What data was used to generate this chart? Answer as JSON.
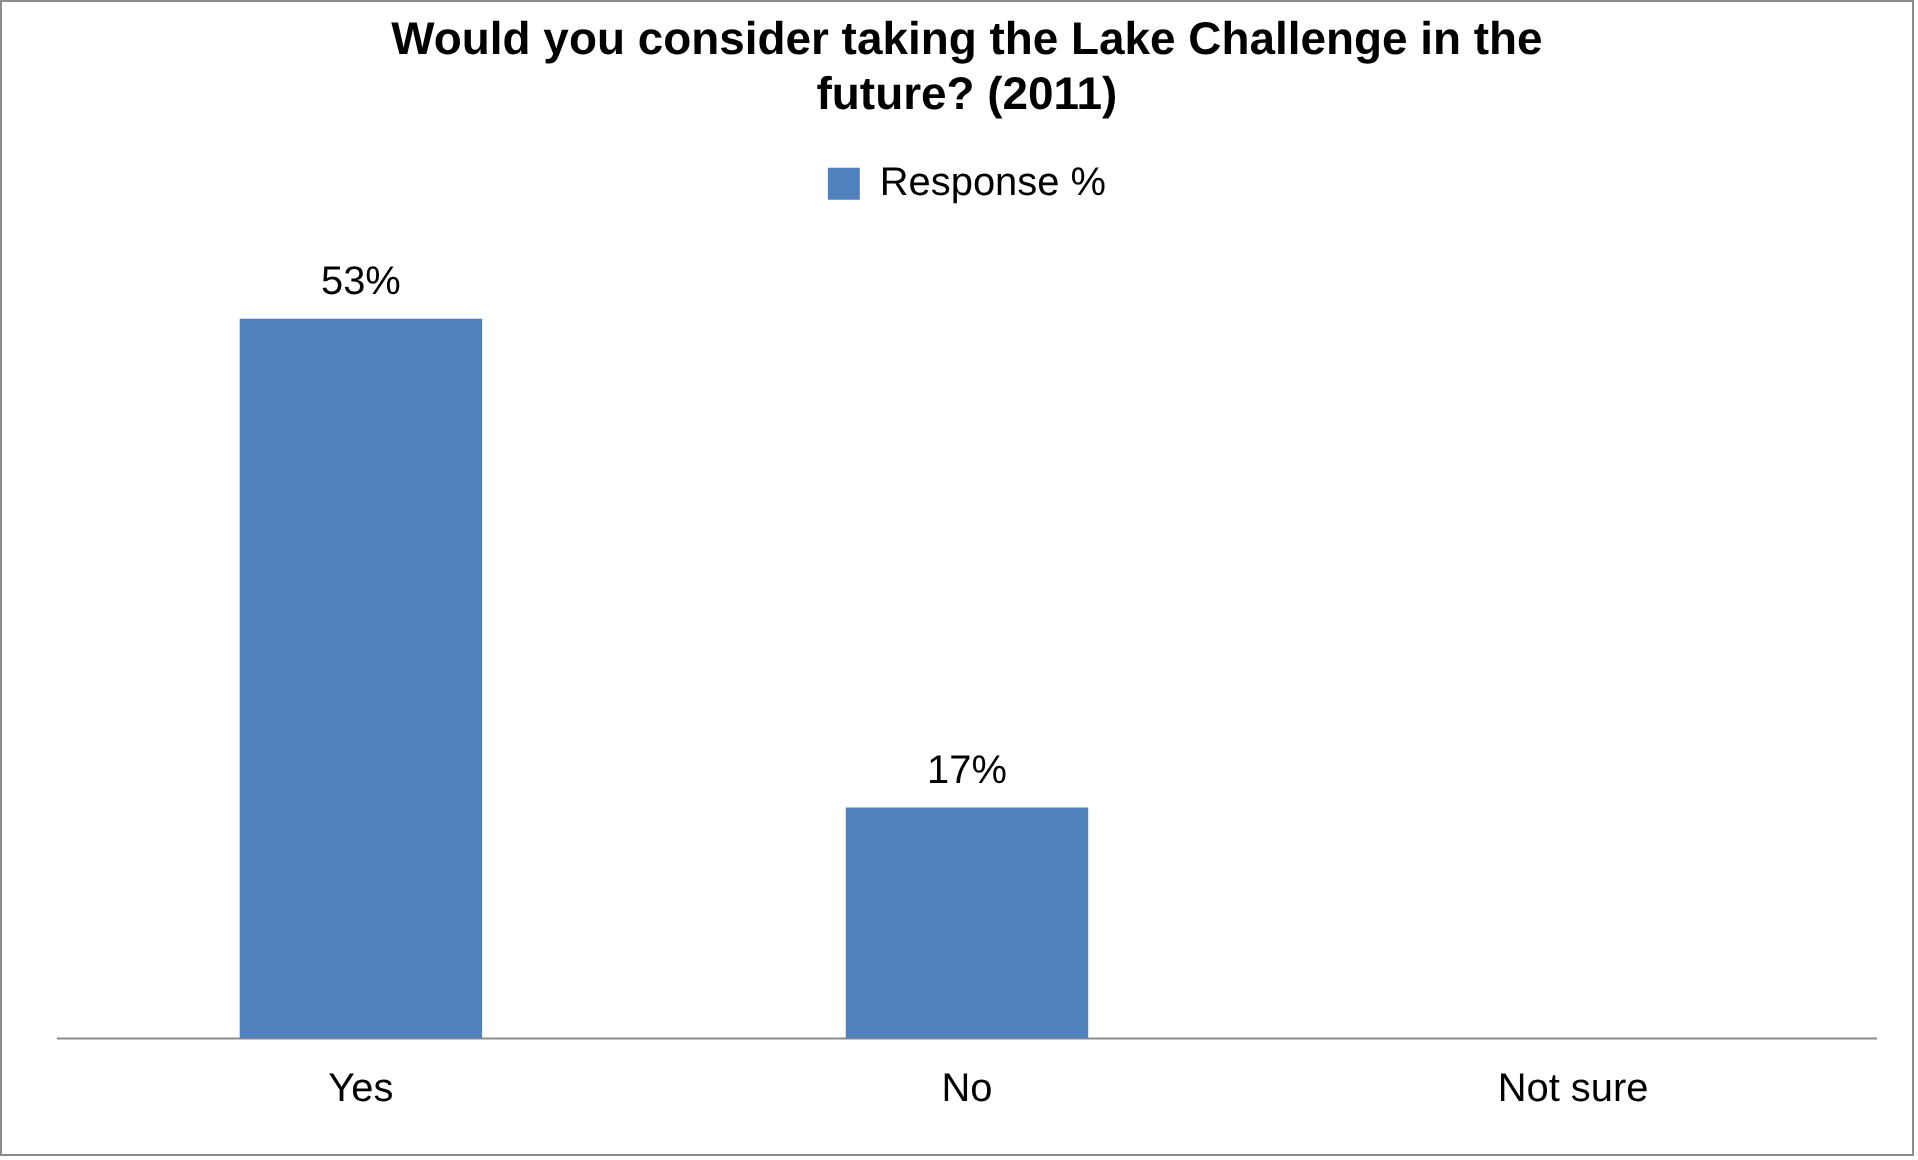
{
  "chart_data": {
    "type": "bar",
    "title": "Would you consider taking the Lake Challenge in the future? (2011)",
    "categories": [
      "Yes",
      "No",
      "Not sure"
    ],
    "series": [
      {
        "name": "Response %",
        "color": "#4f81bd",
        "values": [
          53,
          17,
          null
        ],
        "value_labels": [
          "53%",
          "17%",
          null
        ]
      }
    ],
    "tick_labels": "x",
    "grid": false,
    "legend": "top"
  }
}
